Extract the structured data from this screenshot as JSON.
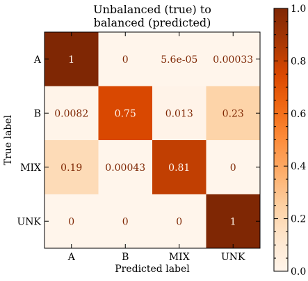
{
  "chart_data": {
    "type": "heatmap",
    "title_lines": [
      "Unbalanced (true) to",
      "balanced (predicted)"
    ],
    "xlabel": "Predicted label",
    "ylabel": "True label",
    "x_categories": [
      "A",
      "B",
      "MIX",
      "UNK"
    ],
    "y_categories": [
      "A",
      "B",
      "MIX",
      "UNK"
    ],
    "values": [
      [
        1,
        0,
        5.6e-05,
        0.00033
      ],
      [
        0.0082,
        0.75,
        0.013,
        0.23
      ],
      [
        0.19,
        0.00043,
        0.81,
        0
      ],
      [
        0,
        0,
        0,
        1
      ]
    ],
    "cell_labels": [
      [
        "1",
        "0",
        "5.6e-05",
        "0.00033"
      ],
      [
        "0.0082",
        "0.75",
        "0.013",
        "0.23"
      ],
      [
        "0.19",
        "0.00043",
        "0.81",
        "0"
      ],
      [
        "0",
        "0",
        "0",
        "1"
      ]
    ],
    "colormap": "Oranges",
    "colorbar": {
      "range": [
        0,
        1
      ],
      "ticks": [
        "0.0",
        "0.2",
        "0.4",
        "0.6",
        "0.8",
        "1.0"
      ],
      "tick_values": [
        0,
        0.2,
        0.4,
        0.6,
        0.8,
        1.0
      ]
    },
    "text_color_dark_cell": "#fff5eb",
    "text_color_light_cell": "#7f2704",
    "grid": false
  }
}
